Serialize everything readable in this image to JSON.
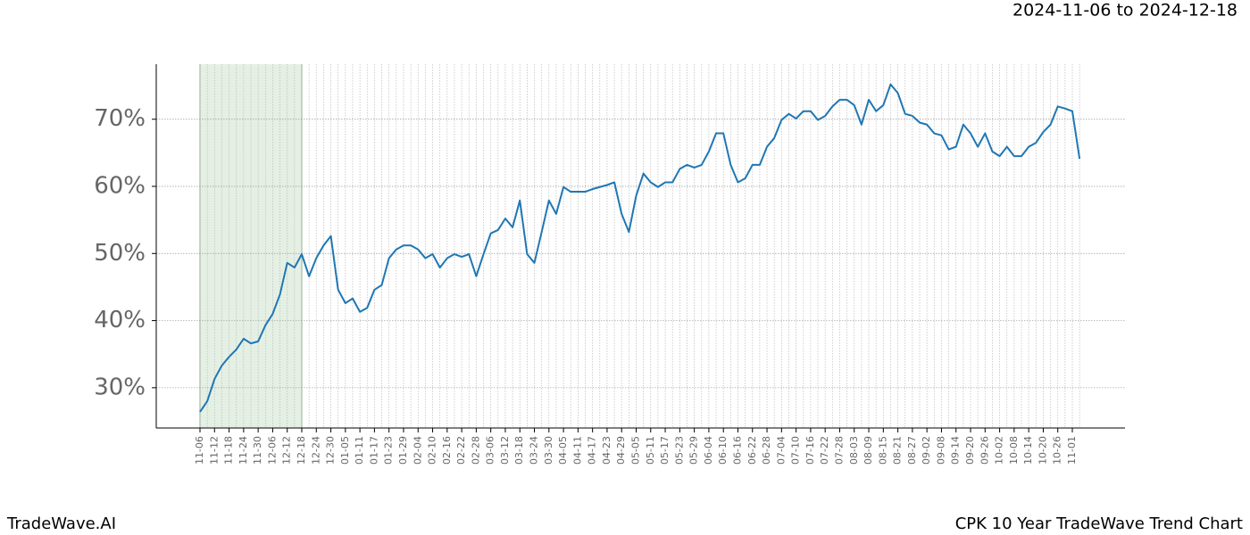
{
  "chart_data": {
    "type": "line",
    "header": "2024-11-06 to 2024-12-18",
    "footer_left": "TradeWave.AI",
    "footer_right": "CPK 10 Year TradeWave Trend Chart",
    "categories": [
      "11-06",
      null,
      "11-12",
      null,
      "11-18",
      null,
      "11-24",
      null,
      "11-30",
      null,
      "12-06",
      null,
      "12-12",
      null,
      "12-18",
      null,
      "12-24",
      null,
      "12-30",
      null,
      "01-05",
      null,
      "01-11",
      null,
      "01-17",
      null,
      "01-23",
      null,
      "01-29",
      null,
      "02-04",
      null,
      "02-10",
      null,
      "02-16",
      null,
      "02-22",
      null,
      "02-28",
      null,
      "03-06",
      null,
      "03-12",
      null,
      "03-18",
      null,
      "03-24",
      null,
      "03-30",
      null,
      "04-05",
      null,
      "04-11",
      null,
      "04-17",
      null,
      "04-23",
      null,
      "04-29",
      null,
      "05-05",
      null,
      "05-11",
      null,
      "05-17",
      null,
      "05-23",
      null,
      "05-29",
      null,
      "06-04",
      null,
      "06-10",
      null,
      "06-16",
      null,
      "06-22",
      null,
      "06-28",
      null,
      "07-04",
      null,
      "07-10",
      null,
      "07-16",
      null,
      "07-22",
      null,
      "07-28",
      null,
      "08-03",
      null,
      "08-09",
      null,
      "08-15",
      null,
      "08-21",
      null,
      "08-27",
      null,
      "09-02",
      null,
      "09-08",
      null,
      "09-14",
      null,
      "09-20",
      null,
      "09-26",
      null,
      "10-02",
      null,
      "10-08",
      null,
      "10-14",
      null,
      "10-20",
      null,
      "10-26",
      null,
      "11-01",
      null
    ],
    "values": [
      26.4,
      28.0,
      31.3,
      33.3,
      34.6,
      35.7,
      37.3,
      36.6,
      36.9,
      39.3,
      41.0,
      43.9,
      48.6,
      47.9,
      49.9,
      46.6,
      49.3,
      51.2,
      52.6,
      44.6,
      42.6,
      43.3,
      41.3,
      41.9,
      44.6,
      45.3,
      49.3,
      50.6,
      51.2,
      51.2,
      50.6,
      49.3,
      49.9,
      47.9,
      49.3,
      49.9,
      49.5,
      49.9,
      46.6,
      49.9,
      53.0,
      53.5,
      55.2,
      53.9,
      57.9,
      49.9,
      48.6,
      53.2,
      57.9,
      55.9,
      59.9,
      59.2,
      59.2,
      59.2,
      59.6,
      59.9,
      60.2,
      60.6,
      55.9,
      53.2,
      58.6,
      61.9,
      60.6,
      59.9,
      60.6,
      60.6,
      62.6,
      63.2,
      62.8,
      63.2,
      65.2,
      67.9,
      67.9,
      63.2,
      60.6,
      61.2,
      63.2,
      63.2,
      65.9,
      67.2,
      69.9,
      70.8,
      70.1,
      71.2,
      71.2,
      69.9,
      70.5,
      71.9,
      72.9,
      72.9,
      72.1,
      69.2,
      72.9,
      71.2,
      72.1,
      75.2,
      73.9,
      70.8,
      70.5,
      69.5,
      69.2,
      67.9,
      67.6,
      65.5,
      65.9,
      69.2,
      67.9,
      65.9,
      67.9,
      65.2,
      64.5,
      65.9,
      64.5,
      64.5,
      65.9,
      66.5,
      68.1,
      69.2,
      71.9,
      71.6,
      71.2,
      64.1
    ],
    "color": "#1f77b4",
    "highlight": [
      "11-06",
      "12-18"
    ],
    "highlight_color": "#e5f0e5",
    "ylim": [
      24,
      78.2
    ],
    "yticks": [
      {
        "value": 30,
        "label": "30%"
      },
      {
        "value": 40,
        "label": "40%"
      },
      {
        "value": 50,
        "label": "50%"
      },
      {
        "value": 60,
        "label": "60%"
      },
      {
        "value": 70,
        "label": "70%"
      }
    ],
    "grid": true
  }
}
